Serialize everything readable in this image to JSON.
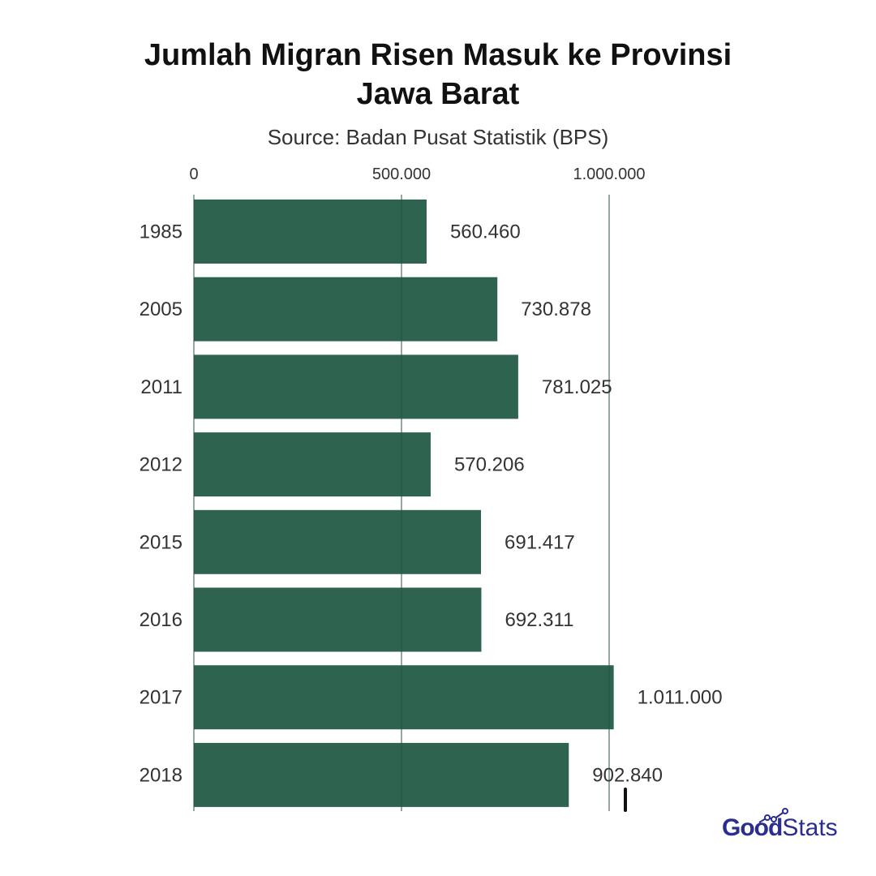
{
  "chart_data": {
    "type": "bar",
    "orientation": "horizontal",
    "title_lines": [
      "Jumlah Migran Risen Masuk ke Provinsi",
      "Jawa Barat"
    ],
    "subtitle": "Source: Badan Pusat Statistik (BPS)",
    "categories": [
      "1985",
      "2005",
      "2011",
      "2012",
      "2015",
      "2016",
      "2017",
      "2018"
    ],
    "values": [
      560460,
      730878,
      781025,
      570206,
      691417,
      692311,
      1011000,
      902840
    ],
    "value_labels": [
      "560.460",
      "730.878",
      "781.025",
      "570.206",
      "691.417",
      "692.311",
      "1.011.000",
      "902.840"
    ],
    "x_ticks": [
      0,
      500000,
      1000000
    ],
    "x_tick_labels": [
      "0",
      "500.000",
      "1.000.000"
    ],
    "xlim": [
      0,
      1000000
    ],
    "xlabel": "",
    "ylabel": "",
    "axis_position": "top",
    "grid": true,
    "bar_color": "#2e6350"
  },
  "logo": {
    "part1": "Good",
    "part2": "Stats",
    "color": "#2b2d8f"
  }
}
